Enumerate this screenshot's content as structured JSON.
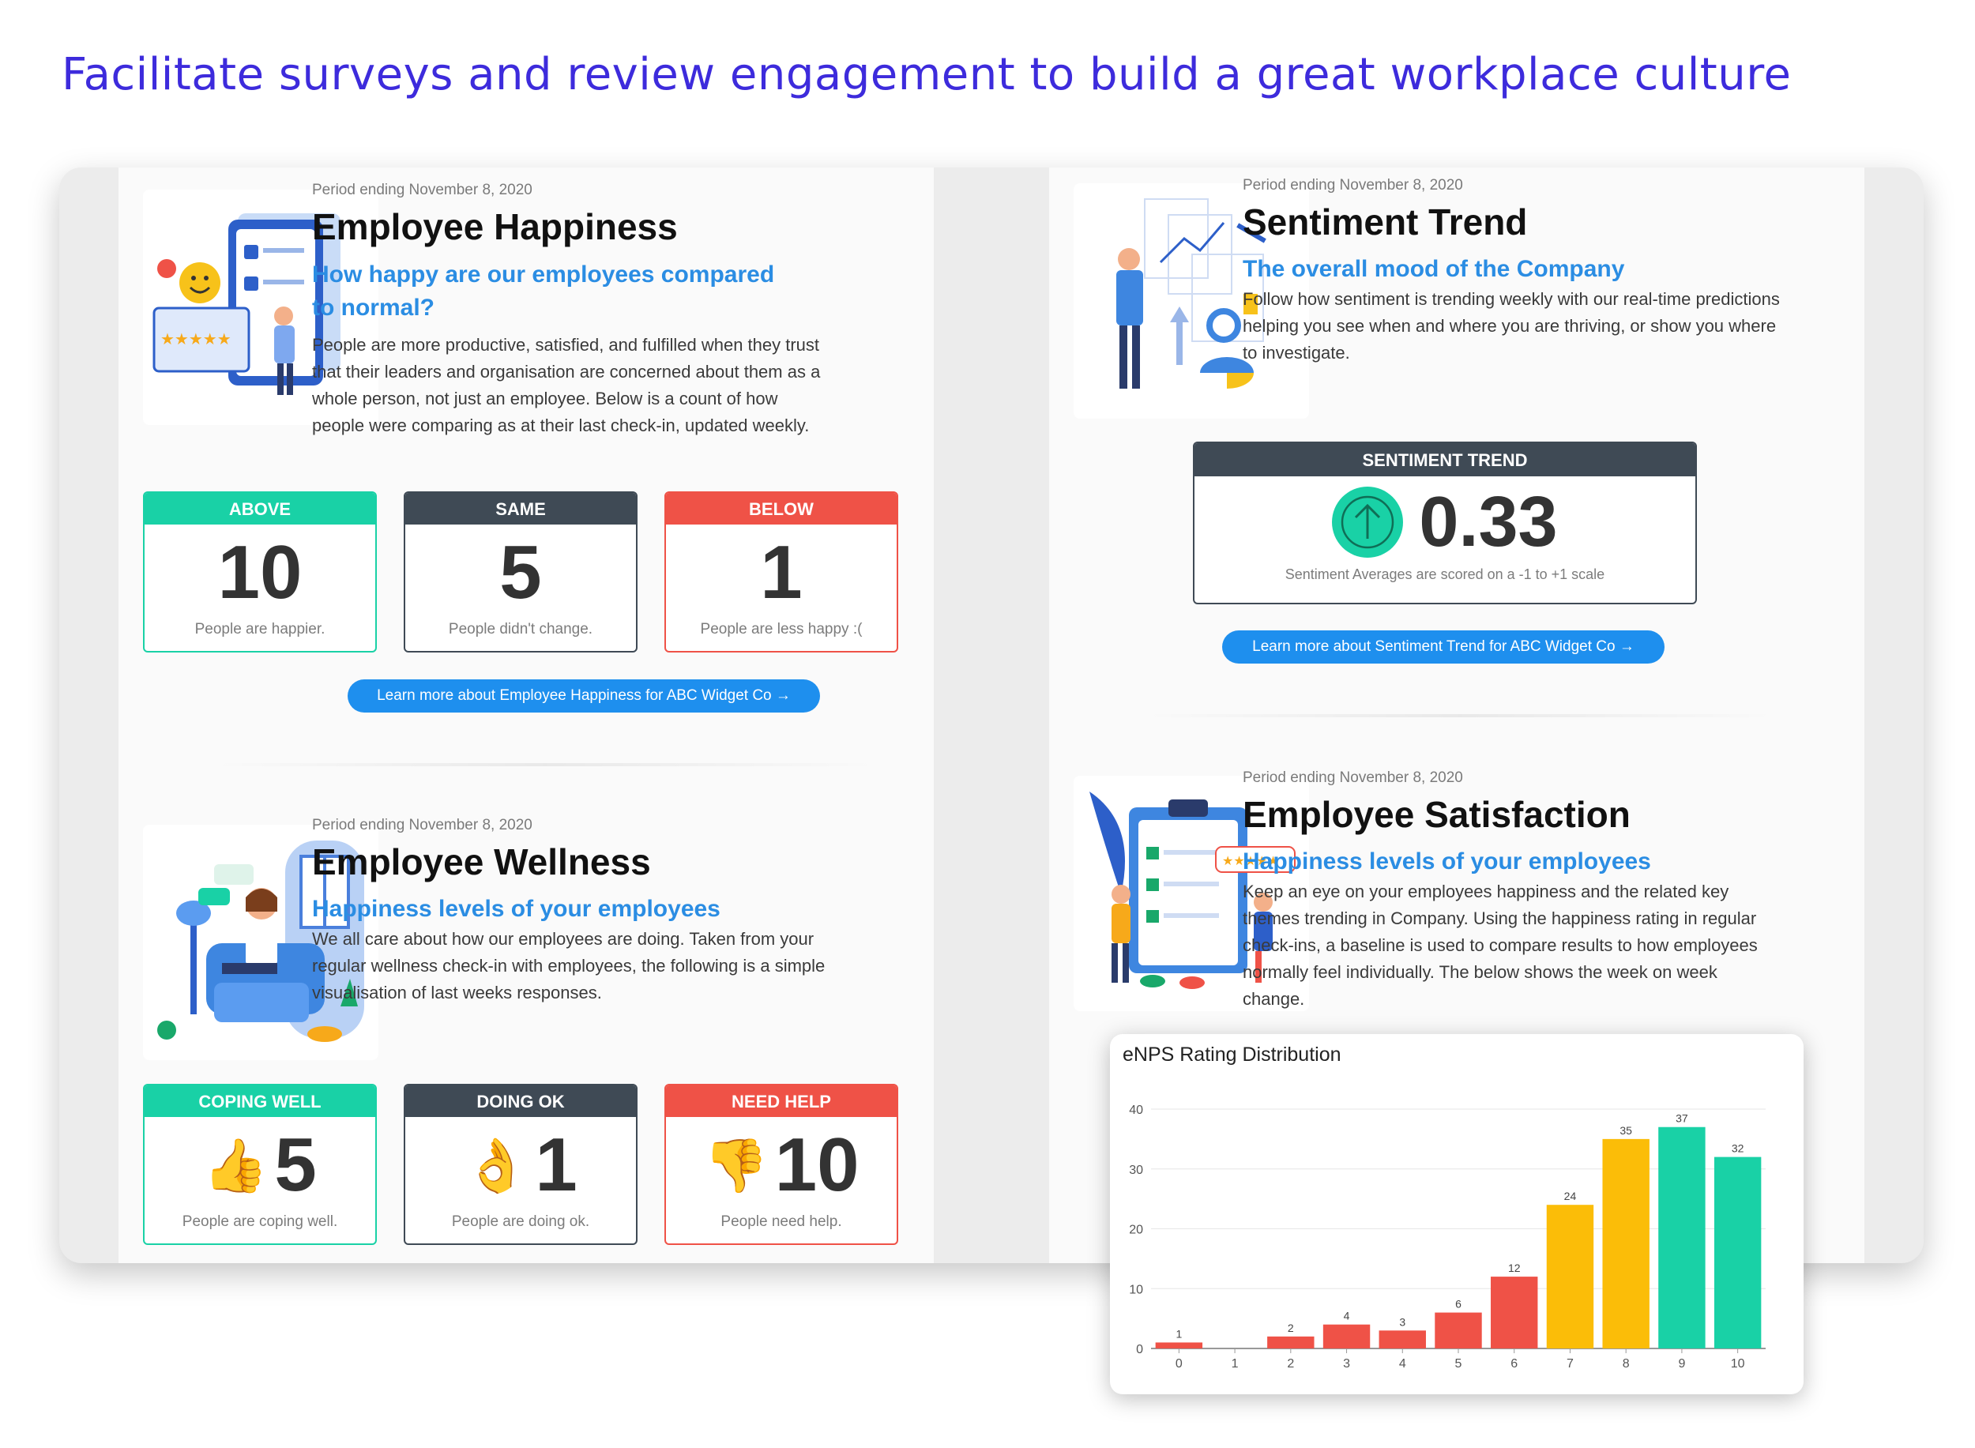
{
  "headline": "Facilitate surveys and review engagement to build a great workplace culture",
  "happiness": {
    "period": "Period ending November 8, 2020",
    "title": "Employee Happiness",
    "subtitle": "How happy are our employees compared to normal?",
    "description": "People are more productive, satisfied, and fulfilled when they trust that their leaders and organisation are concerned about them as a whole person, not just an employee. Below is a count of how people were comparing as at their last check-in, updated weekly.",
    "cards": [
      {
        "label": "ABOVE",
        "value": "10",
        "caption": "People are happier."
      },
      {
        "label": "SAME",
        "value": "5",
        "caption": "People didn't change."
      },
      {
        "label": "BELOW",
        "value": "1",
        "caption": "People are less happy :("
      }
    ],
    "link": "Learn more about Employee Happiness for ABC Widget Co →"
  },
  "wellness": {
    "period": "Period ending November 8, 2020",
    "title": "Employee Wellness",
    "subtitle": "Happiness levels of your employees",
    "description": "We all care about how our employees are doing. Taken from your regular wellness check-in with employees, the following is a simple visualisation of last weeks responses.",
    "cards": [
      {
        "label": "COPING WELL",
        "emoji": "👍",
        "value": "5",
        "caption": "People are coping well."
      },
      {
        "label": "DOING OK",
        "emoji": "👌",
        "value": "1",
        "caption": "People are doing ok."
      },
      {
        "label": "NEED HELP",
        "emoji": "👎",
        "value": "10",
        "caption": "People need help."
      }
    ]
  },
  "sentiment": {
    "period": "Period ending November 8, 2020",
    "title": "Sentiment Trend",
    "subtitle": "The overall mood of the Company",
    "description": "Follow how sentiment is trending weekly with our real-time predictions helping you see when and where you are thriving, or show you where to investigate.",
    "widget_label": "SENTIMENT TREND",
    "value": "0.33",
    "direction_icon": "arrow-up-icon",
    "caption": "Sentiment Averages are scored on a -1 to +1 scale",
    "link": "Learn more about Sentiment Trend for ABC Widget Co →"
  },
  "satisfaction": {
    "period": "Period ending November 8, 2020",
    "title": "Employee Satisfaction",
    "subtitle": "Happiness levels of your employees",
    "description": "Keep an eye on your employees happiness and the related key themes trending in Company. Using the happiness rating in regular check-ins, a baseline is used to compare results to how employees normally feel individually. The below shows the week on week change."
  },
  "colors": {
    "green": "#19d1a6",
    "dark": "#3f4a55",
    "red": "#ef5247",
    "amber": "#fbbd08",
    "blue": "#2b8de3",
    "headline": "#3d2bdc"
  },
  "chart_data": {
    "type": "bar",
    "title": "eNPS Rating Distribution",
    "categories": [
      "0",
      "1",
      "2",
      "3",
      "4",
      "5",
      "6",
      "7",
      "8",
      "9",
      "10"
    ],
    "values": [
      1,
      0,
      2,
      4,
      3,
      6,
      12,
      24,
      35,
      37,
      32
    ],
    "bar_colors": [
      "#ef5247",
      "#ef5247",
      "#ef5247",
      "#ef5247",
      "#ef5247",
      "#ef5247",
      "#ef5247",
      "#fbbd08",
      "#fbbd08",
      "#19d1a6",
      "#19d1a6"
    ],
    "yticks": [
      0,
      10,
      20,
      30,
      40
    ],
    "ylim": [
      0,
      40
    ],
    "xlabel": "",
    "ylabel": "",
    "grid": true,
    "legend": "none"
  }
}
